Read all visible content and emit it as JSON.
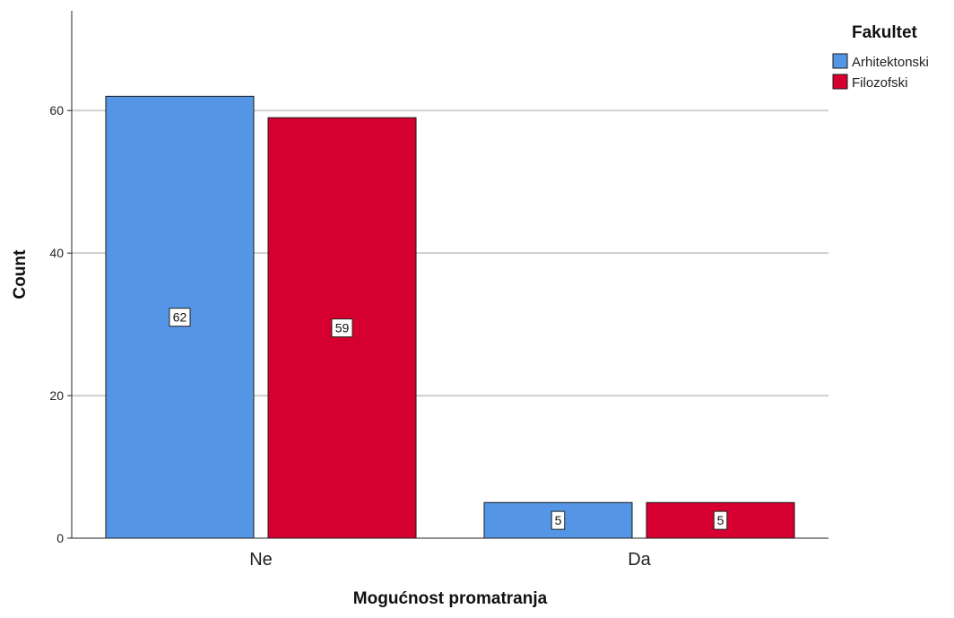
{
  "chart_data": {
    "type": "bar",
    "categories": [
      "Ne",
      "Da"
    ],
    "series": [
      {
        "name": "Arhitektonski",
        "values": [
          62,
          5
        ],
        "color": "#5595e6"
      },
      {
        "name": "Filozofski",
        "values": [
          59,
          5
        ],
        "color": "#d5002f"
      }
    ],
    "xlabel": "Mogućnost promatranja",
    "ylabel": "Count",
    "ylim": [
      0,
      74
    ],
    "yticks": [
      0,
      20,
      40,
      60
    ],
    "grid": true,
    "legend": {
      "title": "Fakultet",
      "position": "top-right"
    },
    "data_labels": true
  }
}
